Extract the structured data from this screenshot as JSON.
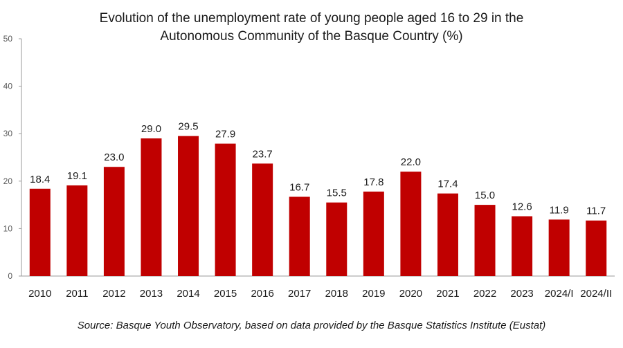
{
  "chart_data": {
    "type": "bar",
    "title": [
      "Evolution of the unemployment rate of young people aged 16 to 29 in the",
      "Autonomous Community of the Basque Country (%)"
    ],
    "categories": [
      "2010",
      "2011",
      "2012",
      "2013",
      "2014",
      "2015",
      "2016",
      "2017",
      "2018",
      "2019",
      "2020",
      "2021",
      "2022",
      "2023",
      "2024/I",
      "2024/II"
    ],
    "values": [
      18.4,
      19.1,
      23.0,
      29.0,
      29.5,
      27.9,
      23.7,
      16.7,
      15.5,
      17.8,
      22.0,
      17.4,
      15.0,
      12.6,
      11.9,
      11.7
    ],
    "value_labels": [
      "18.4",
      "19.1",
      "23.0",
      "29.0",
      "29.5",
      "27.9",
      "23.7",
      "16.7",
      "15.5",
      "17.8",
      "22.0",
      "17.4",
      "15.0",
      "12.6",
      "11.9",
      "11.7"
    ],
    "ylim": [
      0,
      50
    ],
    "yticks": [
      0,
      10,
      20,
      30,
      40,
      50
    ],
    "xlabel": "",
    "ylabel": "",
    "grid": false,
    "legend": "none",
    "bar_color": "#c00000",
    "source": "Source: Basque Youth Observatory, based on data provided by the Basque Statistics Institute (Eustat)"
  }
}
